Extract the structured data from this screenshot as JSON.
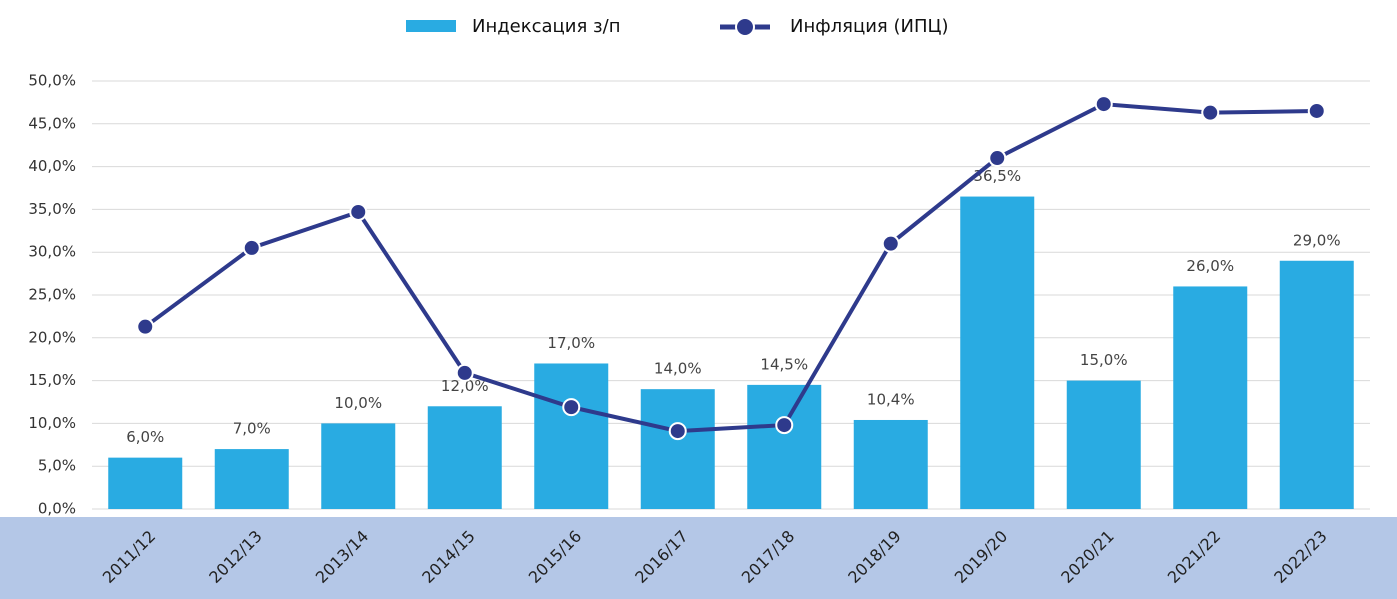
{
  "chart_data": {
    "type": "combo",
    "categories": [
      "2011/12",
      "2012/13",
      "2013/14",
      "2014/15",
      "2015/16",
      "2016/17",
      "2017/18",
      "2018/19",
      "2019/20",
      "2020/21",
      "2021/22",
      "2022/23"
    ],
    "series": [
      {
        "name": "Индексация з/п",
        "type": "bar",
        "color": "#29abe2",
        "values": [
          6,
          7,
          10,
          12,
          17,
          14,
          14.5,
          10.4,
          36.5,
          15,
          26,
          29
        ],
        "value_labels": [
          "6,0%",
          "7,0%",
          "10,0%",
          "12,0%",
          "17,0%",
          "14,0%",
          "14,5%",
          "10,4%",
          "36,5%",
          "15,0%",
          "26,0%",
          "29,0%"
        ]
      },
      {
        "name": "Инфляция (ИПЦ)",
        "type": "line",
        "color": "#2e3a8c",
        "values": [
          21.3,
          30.5,
          34.7,
          15.9,
          11.9,
          9.1,
          9.8,
          31.0,
          41.0,
          47.3,
          46.3,
          46.5
        ]
      }
    ],
    "ylim": [
      0,
      50
    ],
    "yticks": [
      {
        "value": 0,
        "label": "0,0%"
      },
      {
        "value": 5,
        "label": "5,0%"
      },
      {
        "value": 10,
        "label": "10,0%"
      },
      {
        "value": 15,
        "label": "15,0%"
      },
      {
        "value": 20,
        "label": "20,0%"
      },
      {
        "value": 25,
        "label": "25,0%"
      },
      {
        "value": 30,
        "label": "30,0%"
      },
      {
        "value": 35,
        "label": "35,0%"
      },
      {
        "value": 40,
        "label": "40,0%"
      },
      {
        "value": 45,
        "label": "45,0%"
      },
      {
        "value": 50,
        "label": "50,0%"
      }
    ],
    "grid": true,
    "legend": "top"
  }
}
